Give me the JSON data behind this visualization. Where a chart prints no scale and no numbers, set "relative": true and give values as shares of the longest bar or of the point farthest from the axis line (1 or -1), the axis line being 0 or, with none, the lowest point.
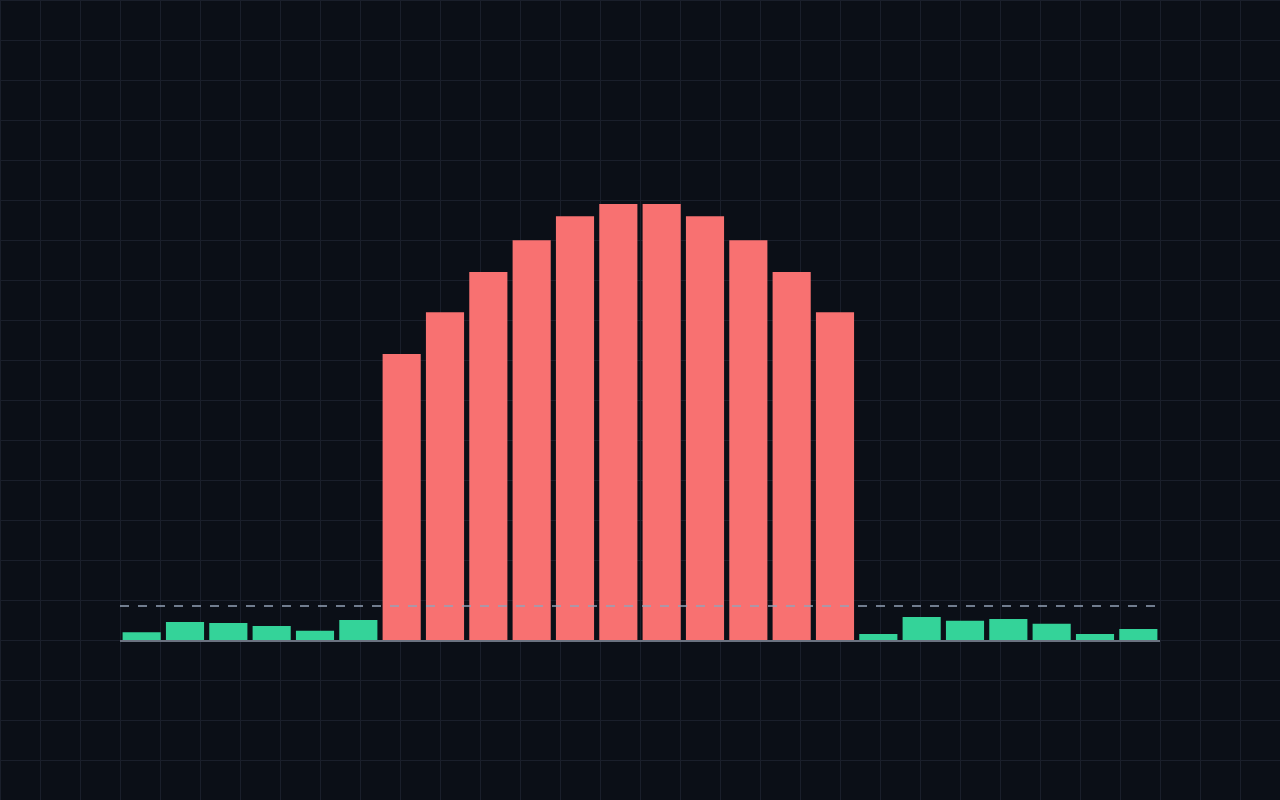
{
  "chart_data": {
    "type": "bar",
    "relative": true,
    "categories": [
      null,
      null,
      null,
      null,
      null,
      null,
      null,
      null,
      null,
      null,
      null,
      null,
      null,
      null,
      null,
      null,
      null,
      null,
      null,
      null,
      null,
      null,
      null,
      null
    ],
    "values": [
      0.018,
      0.041,
      0.039,
      0.032,
      0.021,
      0.046,
      0.656,
      0.752,
      0.844,
      0.917,
      0.972,
      1,
      1,
      0.972,
      0.917,
      0.844,
      0.752,
      0.014,
      0.053,
      0.044,
      0.048,
      0.037,
      0.014,
      0.025
    ],
    "colors": [
      "#34d399",
      "#34d399",
      "#34d399",
      "#34d399",
      "#34d399",
      "#34d399",
      "#f87171",
      "#f87171",
      "#f87171",
      "#f87171",
      "#f87171",
      "#f87171",
      "#f87171",
      "#f87171",
      "#f87171",
      "#f87171",
      "#f87171",
      "#34d399",
      "#34d399",
      "#34d399",
      "#34d399",
      "#34d399",
      "#34d399",
      "#34d399"
    ],
    "ref_lines": [
      {
        "axis": "y",
        "value": 0.078,
        "color": "#94a3b8",
        "line_style": "dashed"
      }
    ],
    "legend": false
  }
}
